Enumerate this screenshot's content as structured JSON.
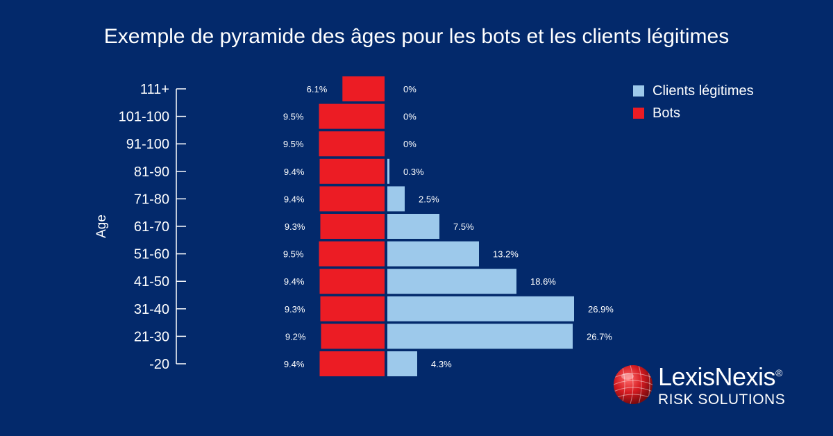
{
  "title": "Exemple de pyramide des âges pour les bots et les clients légitimes",
  "colors": {
    "background": "#03296b",
    "bots": "#ec1c24",
    "clients": "#9dc9eb",
    "text": "#ffffff"
  },
  "legend": {
    "clients": "Clients légitimes",
    "bots": "Bots"
  },
  "logo": {
    "name": "LexisNexis",
    "mark": "®",
    "sub": "RISK SOLUTIONS"
  },
  "chart_data": {
    "type": "bar",
    "orientation": "horizontal-pyramid",
    "ylabel": "Age",
    "categories": [
      "111+",
      "101-100",
      "91-100",
      "81-90",
      "71-80",
      "61-70",
      "51-60",
      "41-50",
      "31-40",
      "21-30",
      "-20"
    ],
    "series": [
      {
        "name": "Bots",
        "values": [
          6.1,
          9.5,
          9.5,
          9.4,
          9.4,
          9.3,
          9.5,
          9.4,
          9.3,
          9.2,
          9.4
        ],
        "labels": [
          "6.1%",
          "9.5%",
          "9.5%",
          "9.4%",
          "9.4%",
          "9.3%",
          "9.5%",
          "9.4%",
          "9.3%",
          "9.2%",
          "9.4%"
        ]
      },
      {
        "name": "Clients légitimes",
        "values": [
          0,
          0,
          0,
          0.3,
          2.5,
          7.5,
          13.2,
          18.6,
          26.9,
          26.7,
          4.3
        ],
        "labels": [
          "0%",
          "0%",
          "0%",
          "0.3%",
          "2.5%",
          "7.5%",
          "13.2%",
          "18.6%",
          "26.9%",
          "26.7%",
          "4.3%"
        ]
      }
    ],
    "grid": false,
    "legend_position": "top-right"
  }
}
